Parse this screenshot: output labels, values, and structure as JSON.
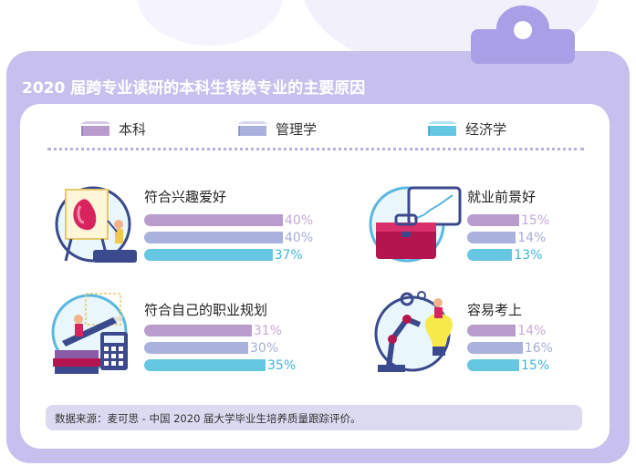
{
  "title": "2020 届跨专业读研的本科生转换专业的主要原因",
  "legend": [
    {
      "label": "本科",
      "color": "#b89ccc",
      "icon": "graduation-cap-icon"
    },
    {
      "label": "管理学",
      "color": "#a9b2dc",
      "icon": "graduation-cap-icon"
    },
    {
      "label": "经济学",
      "color": "#66c7e2",
      "icon": "graduation-cap-icon"
    }
  ],
  "chart_data": {
    "type": "bar",
    "orientation": "horizontal",
    "categories": [
      "符合兴趣爱好",
      "就业前景好",
      "符合自己的职业规划",
      "容易考上"
    ],
    "series": [
      {
        "name": "本科",
        "values": [
          40,
          15,
          31,
          14
        ],
        "labels": [
          "40%",
          "15%",
          "31%",
          "14%"
        ],
        "color": "#b89ccc",
        "label_color": "#c7a9d8"
      },
      {
        "name": "管理学",
        "values": [
          40,
          14,
          30,
          16
        ],
        "labels": [
          "40%",
          "14%",
          "30%",
          "16%"
        ],
        "color": "#a9b2dc",
        "label_color": "#a5aed8"
      },
      {
        "name": "经济学",
        "values": [
          37,
          13,
          35,
          15
        ],
        "labels": [
          "37%",
          "13%",
          "35%",
          "15%"
        ],
        "color": "#66c7e2",
        "label_color": "#3fb6dc"
      }
    ],
    "unit": "%",
    "legend_position": "top",
    "grid": false
  },
  "source": "数据来源：麦可思 - 中国 2020 届大学毕业生培养质量跟踪评价。"
}
